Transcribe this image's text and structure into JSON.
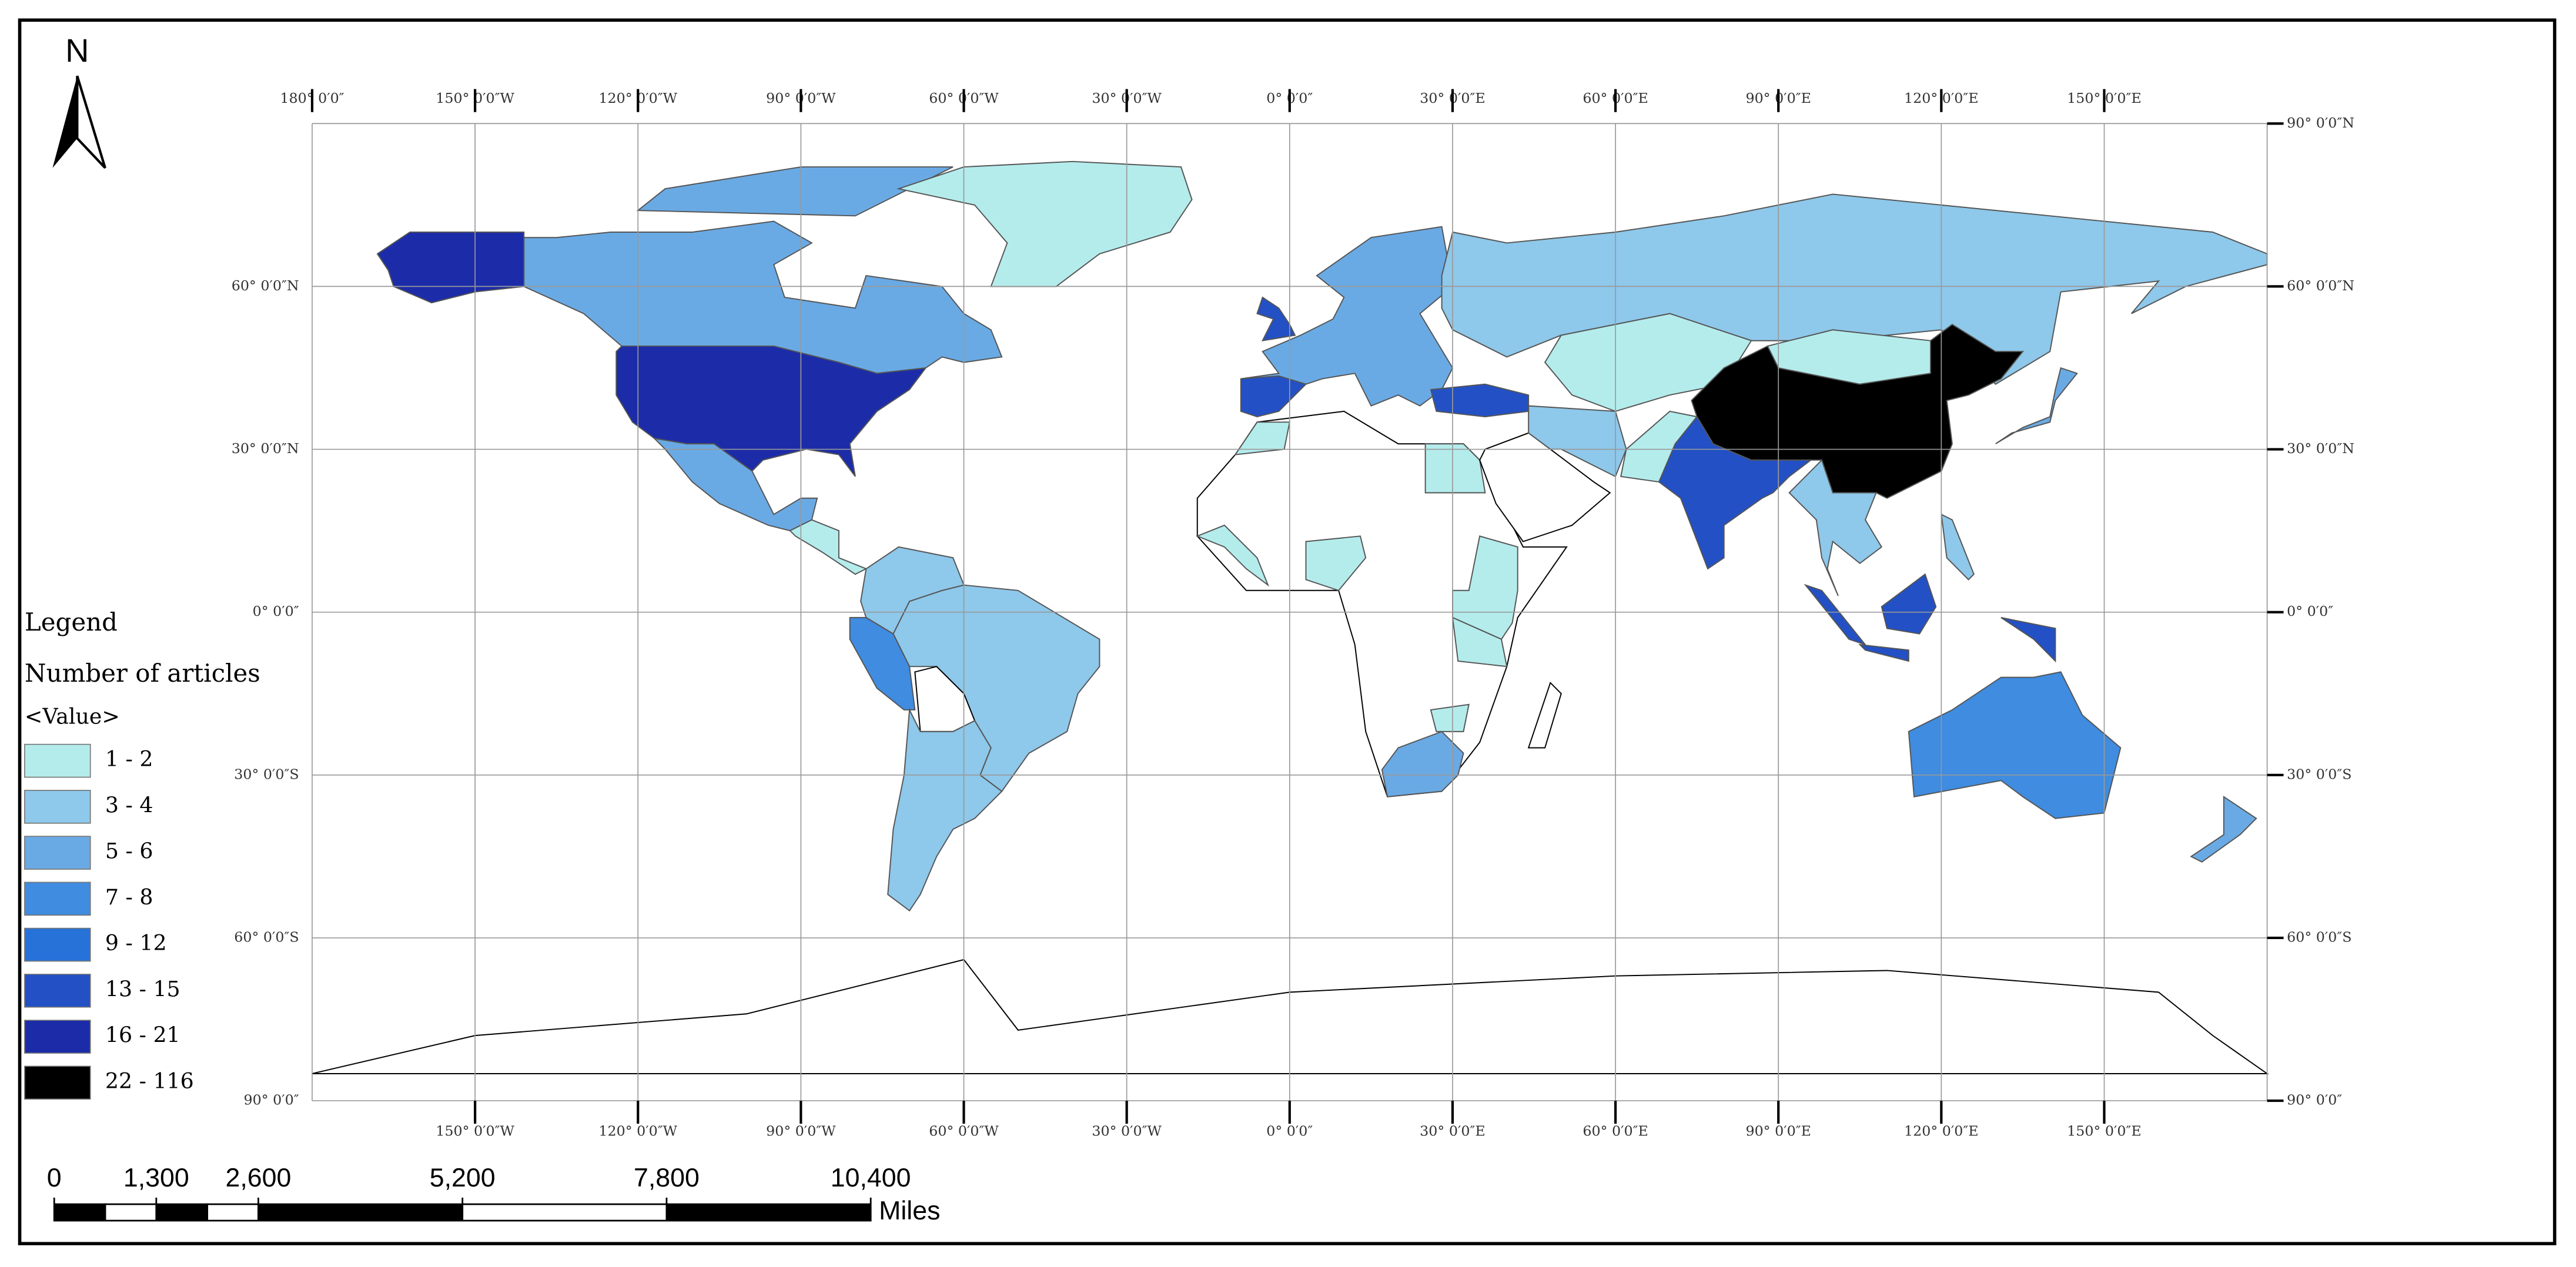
{
  "north_arrow": "N",
  "graticule": {
    "top_labels": [
      "180° 0′0″",
      "150° 0′0″W",
      "120° 0′0″W",
      "90° 0′0″W",
      "60° 0′0″W",
      "30° 0′0″W",
      "0° 0′0″",
      "30° 0′0″E",
      "60° 0′0″E",
      "90° 0′0″E",
      "120° 0′0″E",
      "150° 0′0″E"
    ],
    "bottom_labels": [
      "150° 0′0″W",
      "120° 0′0″W",
      "90° 0′0″W",
      "60° 0′0″W",
      "30° 0′0″W",
      "0° 0′0″",
      "30° 0′0″E",
      "60° 0′0″E",
      "90° 0′0″E",
      "120° 0′0″E",
      "150° 0′0″E"
    ],
    "left_labels": [
      "60° 0′0″N",
      "30° 0′0″N",
      "0° 0′0″",
      "30° 0′0″S",
      "60° 0′0″S",
      "90° 0′0″"
    ],
    "right_labels": [
      "90° 0′0″N",
      "60° 0′0″N",
      "30° 0′0″N",
      "0° 0′0″",
      "30° 0′0″S",
      "60° 0′0″S",
      "90° 0′0″"
    ]
  },
  "legend": {
    "title": "Legend",
    "field": "Number of articles",
    "subtitle": "<Value>",
    "items": [
      {
        "label": "1 - 2",
        "color": "#b4ecec"
      },
      {
        "label": "3 - 4",
        "color": "#8ec8ea"
      },
      {
        "label": "5 - 6",
        "color": "#6aaae4"
      },
      {
        "label": "7 - 8",
        "color": "#3f8ce0"
      },
      {
        "label": "9 - 12",
        "color": "#2672d8"
      },
      {
        "label": "13 - 15",
        "color": "#2350c4"
      },
      {
        "label": "16 - 21",
        "color": "#1c2ca8"
      },
      {
        "label": "22 - 116",
        "color": "#000000"
      }
    ]
  },
  "scale_bar": {
    "ticks": [
      {
        "value": 0,
        "label": "0"
      },
      {
        "value": 1300,
        "label": "1,300"
      },
      {
        "value": 2600,
        "label": "2,600"
      },
      {
        "value": 5200,
        "label": "5,200"
      },
      {
        "value": 7800,
        "label": "7,800"
      },
      {
        "value": 10400,
        "label": "10,400"
      }
    ],
    "unit": "Miles"
  }
}
